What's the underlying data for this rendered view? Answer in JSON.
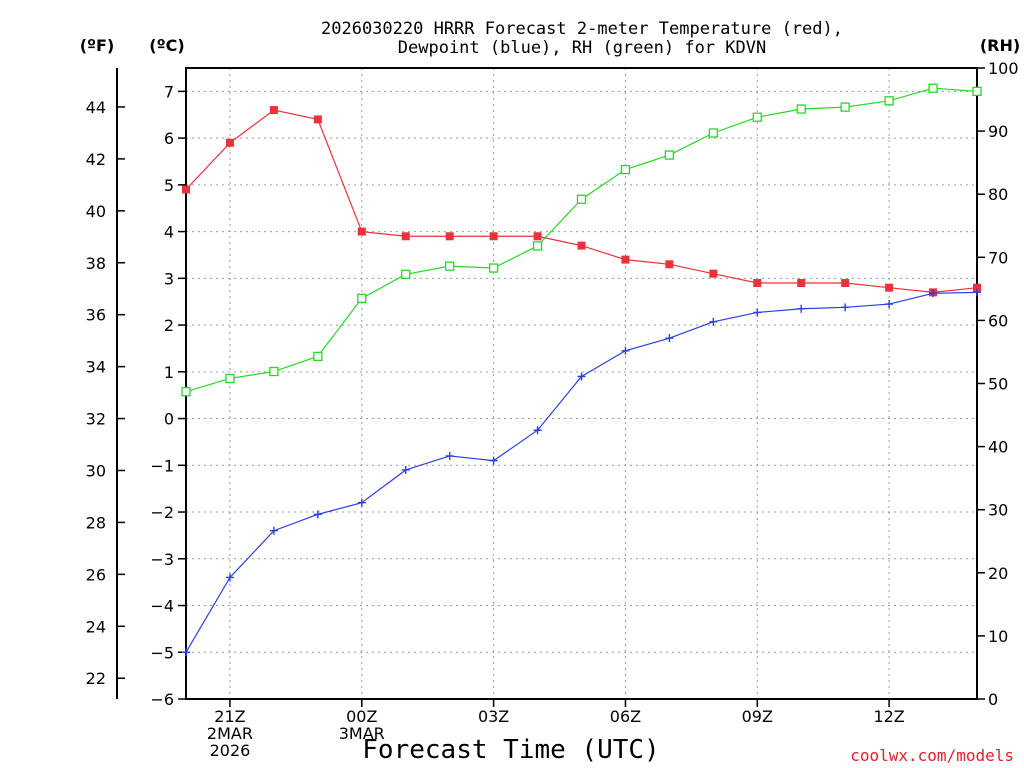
{
  "chart_data": {
    "type": "line",
    "title_lines": [
      "2026030220 HRRR Forecast 2-meter Temperature (red),",
      "Dewpoint (blue), RH (green) for KDVN"
    ],
    "xlabel": "Forecast Time (UTC)",
    "credit": "coolwx.com/models",
    "units": {
      "fahrenheit": "(ºF)",
      "celsius": "(ºC)",
      "rh": "(RH)"
    },
    "x": [
      0,
      1,
      2,
      3,
      4,
      5,
      6,
      7,
      8,
      9,
      10,
      11,
      12,
      13,
      14,
      15,
      16,
      17,
      18
    ],
    "x_ticks": [
      {
        "x": 1,
        "lines": [
          "21Z",
          "2MAR",
          "2026"
        ]
      },
      {
        "x": 4,
        "lines": [
          "00Z",
          "3MAR"
        ]
      },
      {
        "x": 7,
        "lines": [
          "03Z"
        ]
      },
      {
        "x": 10,
        "lines": [
          "06Z"
        ]
      },
      {
        "x": 13,
        "lines": [
          "09Z"
        ]
      },
      {
        "x": 16,
        "lines": [
          "12Z"
        ]
      }
    ],
    "xlim": [
      0,
      18
    ],
    "celsius_axis": {
      "ylim": [
        -6,
        7.5
      ],
      "ticks": [
        -6,
        -5,
        -4,
        -3,
        -2,
        -1,
        0,
        1,
        2,
        3,
        4,
        5,
        6,
        7
      ]
    },
    "fahrenheit_axis": {
      "ticks": [
        22,
        24,
        26,
        28,
        30,
        32,
        34,
        36,
        38,
        40,
        42,
        44
      ]
    },
    "rh_axis": {
      "ylim": [
        0,
        100
      ],
      "ticks": [
        0,
        10,
        20,
        30,
        40,
        50,
        60,
        70,
        80,
        90,
        100
      ]
    },
    "grid": true,
    "series": [
      {
        "name": "Temperature",
        "axis": "celsius",
        "color": "#e8333a",
        "marker": "filled-square",
        "values": [
          4.9,
          5.9,
          6.6,
          6.4,
          4.0,
          3.9,
          3.9,
          3.9,
          3.9,
          3.7,
          3.4,
          3.3,
          3.1,
          2.9,
          2.9,
          2.9,
          2.8,
          2.7,
          2.8
        ]
      },
      {
        "name": "Dewpoint",
        "axis": "celsius",
        "color": "#2a3fe0",
        "marker": "plus",
        "values": [
          -5.0,
          -3.4,
          -2.4,
          -2.05,
          -1.8,
          -1.1,
          -0.8,
          -0.9,
          -0.25,
          0.9,
          1.45,
          1.72,
          2.07,
          2.27,
          2.35,
          2.38,
          2.45,
          2.68,
          2.7
        ]
      },
      {
        "name": "RH",
        "axis": "rh",
        "color": "#27d827",
        "marker": "open-square",
        "values": [
          48.7,
          50.8,
          51.9,
          54.3,
          63.5,
          67.3,
          68.6,
          68.3,
          71.8,
          79.2,
          83.9,
          86.2,
          89.7,
          92.2,
          93.5,
          93.8,
          94.8,
          96.8,
          96.3
        ]
      }
    ]
  }
}
